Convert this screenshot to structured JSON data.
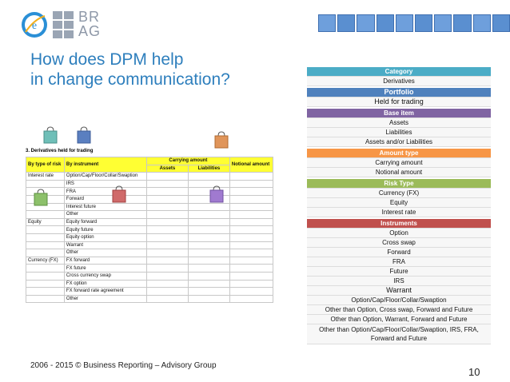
{
  "logo": {
    "letter": "e",
    "line1": "BR",
    "line2": "AG"
  },
  "title": {
    "line1": "How does DPM help",
    "line2": "in change communication?"
  },
  "footer": "2006 - 2015 © Business Reporting – Advisory Group",
  "page_number": "10",
  "colors": {
    "category": "#4bacc6",
    "portfolio": "#4f81bd",
    "base_item": "#8064a2",
    "amount_type": "#f79646",
    "risk_type": "#9bbb59",
    "instruments": "#c0504d",
    "title": "#2e7fbd",
    "table_header": "#ffff33"
  },
  "panel": {
    "category": {
      "header": "Category",
      "items": [
        "Derivatives"
      ]
    },
    "portfolio": {
      "header": "Portfolio",
      "items": [
        "Held for trading"
      ]
    },
    "base_item": {
      "header": "Base item",
      "items": [
        "Assets",
        "Liabilities",
        "Assets and/or Liabilities"
      ]
    },
    "amount_type": {
      "header": "Amount type",
      "items": [
        "Carrying amount",
        "Notional amount"
      ]
    },
    "risk_type": {
      "header": "Risk Type",
      "items": [
        "Currency (FX)",
        "Equity",
        "Interest rate"
      ]
    },
    "instruments": {
      "header": "Instruments",
      "items": [
        "Option",
        "Cross swap",
        "Forward",
        "FRA",
        "Future",
        "IRS",
        "Warrant",
        "Option/Cap/Floor/Collar/Swaption",
        "Other than Option, Cross swap, Forward and Future",
        "Other than Option, Warrant, Forward and Future",
        "Other than Option/Cap/Floor/Collar/Swaption, IRS, FRA, Forward and Future"
      ]
    }
  },
  "table": {
    "section_title": "3.    Derivatives held for trading",
    "headers": {
      "risk": "By type of risk",
      "instrument": "By instrument",
      "carrying": "Carrying amount",
      "assets": "Assets",
      "liabilities": "Liabilities",
      "notional": "Notional amount"
    },
    "rows": [
      {
        "risk": "Interest rate",
        "instrument": "Option/Cap/Floor/Collar/Swaption"
      },
      {
        "risk": "",
        "instrument": "IRS"
      },
      {
        "risk": "",
        "instrument": "FRA"
      },
      {
        "risk": "",
        "instrument": "Forward"
      },
      {
        "risk": "",
        "instrument": "Interest future"
      },
      {
        "risk": "",
        "instrument": "Other"
      },
      {
        "risk": "Equity",
        "instrument": "Equity forward"
      },
      {
        "risk": "",
        "instrument": "Equity future"
      },
      {
        "risk": "",
        "instrument": "Equity option"
      },
      {
        "risk": "",
        "instrument": "Warrant"
      },
      {
        "risk": "",
        "instrument": "Other"
      },
      {
        "risk": "Currency (FX)",
        "instrument": "FX forward"
      },
      {
        "risk": "",
        "instrument": "FX future"
      },
      {
        "risk": "",
        "instrument": "Cross currency swap"
      },
      {
        "risk": "",
        "instrument": "FX option"
      },
      {
        "risk": "",
        "instrument": "FX forward rate agreement"
      },
      {
        "risk": "",
        "instrument": "Other"
      }
    ]
  }
}
